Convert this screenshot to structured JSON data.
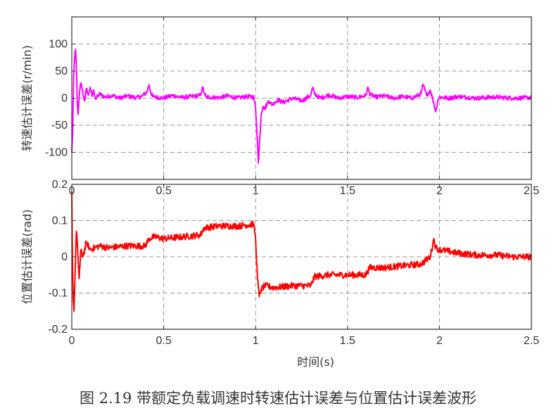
{
  "caption": "图 2.19  带额定负载调速时转速估计误差与位置估计误差波形",
  "chart_data": [
    {
      "type": "line",
      "title": "",
      "xlabel": "",
      "ylabel": "转速估计误差(r/min)",
      "xlim": [
        0,
        2.5
      ],
      "ylim": [
        -150,
        150
      ],
      "xticks": [
        0,
        0.5,
        1,
        1.5,
        2,
        2.5
      ],
      "xtick_labels": [
        "0",
        "0.5",
        "1",
        "1.5",
        "2",
        "2.5"
      ],
      "yticks": [
        -100,
        -50,
        0,
        50,
        100
      ],
      "ytick_labels": [
        "-100",
        "-50",
        "0",
        "50",
        "100"
      ],
      "grid": true,
      "series": [
        {
          "color": "#ff00ff",
          "points": [
            [
              0,
              -100
            ],
            [
              0.005,
              -60
            ],
            [
              0.01,
              40
            ],
            [
              0.015,
              70
            ],
            [
              0.02,
              90
            ],
            [
              0.025,
              60
            ],
            [
              0.03,
              -10
            ],
            [
              0.035,
              -30
            ],
            [
              0.04,
              0
            ],
            [
              0.045,
              20
            ],
            [
              0.05,
              28
            ],
            [
              0.06,
              10
            ],
            [
              0.07,
              -5
            ],
            [
              0.08,
              18
            ],
            [
              0.09,
              5
            ],
            [
              0.1,
              20
            ],
            [
              0.11,
              3
            ],
            [
              0.12,
              15
            ],
            [
              0.13,
              -2
            ],
            [
              0.15,
              8
            ],
            [
              0.18,
              2
            ],
            [
              0.22,
              5
            ],
            [
              0.26,
              0
            ],
            [
              0.3,
              4
            ],
            [
              0.35,
              1
            ],
            [
              0.38,
              3
            ],
            [
              0.41,
              12
            ],
            [
              0.42,
              25
            ],
            [
              0.43,
              10
            ],
            [
              0.44,
              3
            ],
            [
              0.5,
              0
            ],
            [
              0.55,
              5
            ],
            [
              0.6,
              1
            ],
            [
              0.65,
              3
            ],
            [
              0.7,
              5
            ],
            [
              0.71,
              20
            ],
            [
              0.72,
              10
            ],
            [
              0.73,
              2
            ],
            [
              0.8,
              1
            ],
            [
              0.85,
              4
            ],
            [
              0.9,
              0
            ],
            [
              0.95,
              3
            ],
            [
              0.99,
              2
            ],
            [
              1.0,
              -20
            ],
            [
              1.01,
              -80
            ],
            [
              1.015,
              -120
            ],
            [
              1.02,
              -90
            ],
            [
              1.03,
              -30
            ],
            [
              1.04,
              -15
            ],
            [
              1.05,
              -20
            ],
            [
              1.07,
              -5
            ],
            [
              1.09,
              -12
            ],
            [
              1.12,
              -3
            ],
            [
              1.15,
              -8
            ],
            [
              1.2,
              0
            ],
            [
              1.25,
              -5
            ],
            [
              1.3,
              5
            ],
            [
              1.31,
              20
            ],
            [
              1.32,
              8
            ],
            [
              1.35,
              0
            ],
            [
              1.4,
              6
            ],
            [
              1.45,
              0
            ],
            [
              1.5,
              3
            ],
            [
              1.55,
              1
            ],
            [
              1.6,
              5
            ],
            [
              1.61,
              20
            ],
            [
              1.62,
              8
            ],
            [
              1.65,
              2
            ],
            [
              1.7,
              4
            ],
            [
              1.75,
              0
            ],
            [
              1.8,
              3
            ],
            [
              1.85,
              0
            ],
            [
              1.9,
              8
            ],
            [
              1.91,
              25
            ],
            [
              1.93,
              5
            ],
            [
              1.95,
              15
            ],
            [
              1.97,
              -10
            ],
            [
              1.98,
              -25
            ],
            [
              1.99,
              -5
            ],
            [
              2.0,
              2
            ],
            [
              2.05,
              0
            ],
            [
              2.1,
              3
            ],
            [
              2.2,
              0
            ],
            [
              2.3,
              2
            ],
            [
              2.4,
              0
            ],
            [
              2.5,
              1
            ]
          ],
          "noise": 4
        }
      ]
    },
    {
      "type": "line",
      "title": "",
      "xlabel": "时间(s)",
      "ylabel": "位置估计误差(rad)",
      "xlim": [
        0,
        2.5
      ],
      "ylim": [
        -0.2,
        0.2
      ],
      "xticks": [
        0,
        0.5,
        1,
        1.5,
        2,
        2.5
      ],
      "xtick_labels": [
        "0",
        "0.5",
        "1",
        "1.5",
        "2",
        "2.5"
      ],
      "yticks": [
        -0.2,
        -0.1,
        0,
        0.1,
        0.2
      ],
      "ytick_labels": [
        "-0.2",
        "-0.1",
        "0",
        "0.1",
        "0.2"
      ],
      "grid": true,
      "series": [
        {
          "color": "#ff0000",
          "points": [
            [
              0,
              0.18
            ],
            [
              0.003,
              0.02
            ],
            [
              0.008,
              -0.12
            ],
            [
              0.012,
              -0.15
            ],
            [
              0.018,
              -0.05
            ],
            [
              0.025,
              0.07
            ],
            [
              0.03,
              0.04
            ],
            [
              0.04,
              -0.06
            ],
            [
              0.05,
              0.02
            ],
            [
              0.06,
              0.0
            ],
            [
              0.08,
              0.04
            ],
            [
              0.1,
              0.02
            ],
            [
              0.15,
              0.03
            ],
            [
              0.2,
              0.025
            ],
            [
              0.3,
              0.03
            ],
            [
              0.4,
              0.03
            ],
            [
              0.42,
              0.05
            ],
            [
              0.45,
              0.055
            ],
            [
              0.5,
              0.05
            ],
            [
              0.6,
              0.055
            ],
            [
              0.7,
              0.06
            ],
            [
              0.72,
              0.08
            ],
            [
              0.8,
              0.085
            ],
            [
              0.9,
              0.085
            ],
            [
              0.99,
              0.09
            ],
            [
              1.0,
              0.05
            ],
            [
              1.01,
              -0.06
            ],
            [
              1.02,
              -0.11
            ],
            [
              1.03,
              -0.09
            ],
            [
              1.05,
              -0.08
            ],
            [
              1.1,
              -0.085
            ],
            [
              1.2,
              -0.08
            ],
            [
              1.3,
              -0.08
            ],
            [
              1.32,
              -0.055
            ],
            [
              1.4,
              -0.05
            ],
            [
              1.5,
              -0.05
            ],
            [
              1.6,
              -0.05
            ],
            [
              1.62,
              -0.03
            ],
            [
              1.7,
              -0.03
            ],
            [
              1.8,
              -0.025
            ],
            [
              1.9,
              -0.02
            ],
            [
              1.95,
              0.0
            ],
            [
              1.97,
              0.05
            ],
            [
              1.98,
              0.025
            ],
            [
              2.0,
              0.02
            ],
            [
              2.1,
              0.01
            ],
            [
              2.2,
              0.005
            ],
            [
              2.3,
              0.005
            ],
            [
              2.4,
              0.0
            ],
            [
              2.5,
              0.0
            ]
          ],
          "noise": 0.009
        }
      ]
    }
  ]
}
